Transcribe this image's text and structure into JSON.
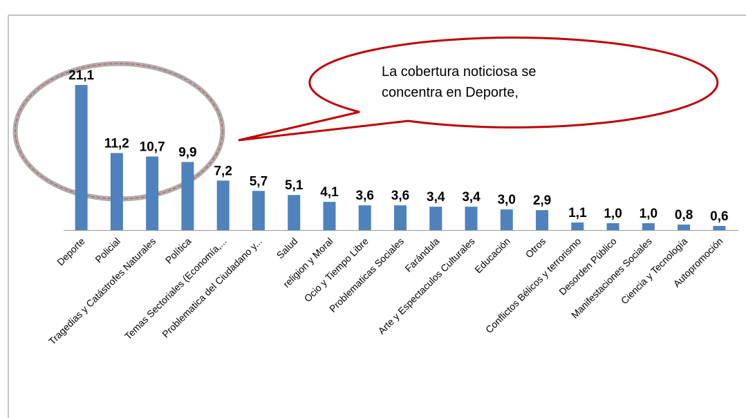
{
  "chart_data": {
    "type": "bar",
    "categories": [
      "Deporte",
      "Policial",
      "Tragedias y Catástrofes Naturales",
      "Política",
      "Temas Sectoriales (Economía,...",
      "Problematica del Ciudadano y...",
      "Salud",
      "religion y Moral",
      "Ocio y Tiempo Libre",
      "Problematicas Sociales",
      "Farándula",
      "Arte y Espectaculos Culturales",
      "Educación",
      "Otros",
      "Conflictos Bélicos y terrorismo",
      "Desorden Público",
      "Manifestaciones Sociales",
      "Ciencia y Tecnología",
      "Autopromoción"
    ],
    "values": [
      21.1,
      11.2,
      10.7,
      9.9,
      7.2,
      5.7,
      5.1,
      4.1,
      3.6,
      3.6,
      3.4,
      3.4,
      3.0,
      2.9,
      1.1,
      1.0,
      1.0,
      0.8,
      0.6
    ],
    "value_labels": [
      "21,1",
      "11,2",
      "10,7",
      "9,9",
      "7,2",
      "5,7",
      "5,1",
      "4,1",
      "3,6",
      "3,6",
      "3,4",
      "3,4",
      "3,0",
      "2,9",
      "1,1",
      "1,0",
      "1,0",
      "0,8",
      "0,6"
    ],
    "color": "#4f81bd",
    "annotation": [
      "La cobertura noticiosa se",
      "concentra en Deporte,"
    ]
  }
}
